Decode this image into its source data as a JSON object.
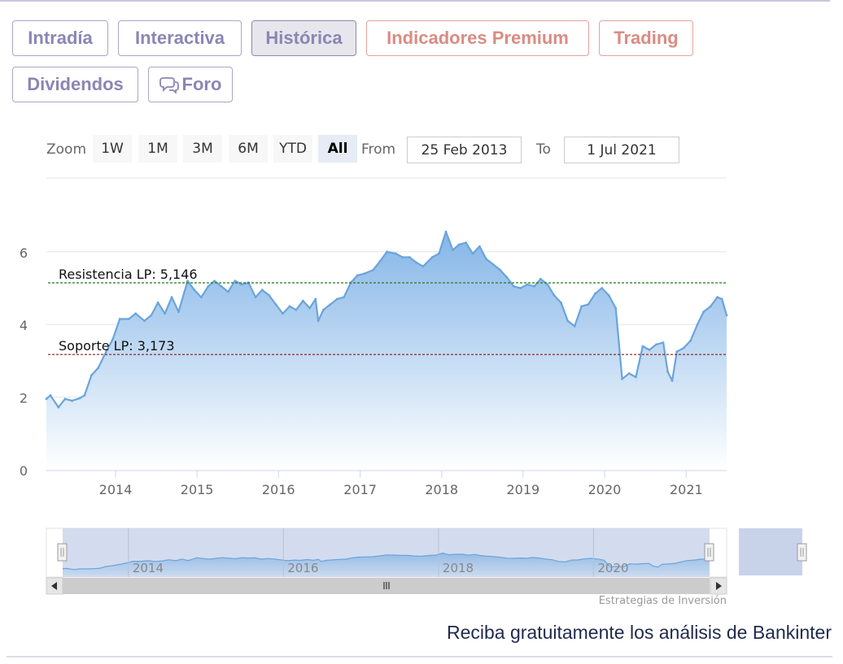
{
  "tabs": [
    {
      "label": "Intradía",
      "state": "normal"
    },
    {
      "label": "Interactiva",
      "state": "normal"
    },
    {
      "label": "Histórica",
      "state": "active"
    },
    {
      "label": "Indicadores Premium",
      "state": "premium"
    },
    {
      "label": "Trading",
      "state": "premium"
    },
    {
      "label": "Dividendos",
      "state": "normal"
    },
    {
      "label": "Foro",
      "state": "normal",
      "icon": "chat-bubbles-icon"
    }
  ],
  "range_selector": {
    "zoom_label": "Zoom",
    "buttons": [
      "1W",
      "1M",
      "3M",
      "6M",
      "YTD",
      "All"
    ],
    "selected": "All",
    "from_label": "From",
    "from_value": "25 Feb 2013",
    "to_label": "To",
    "to_value": "1 Jul 2021"
  },
  "chart_data": {
    "type": "area",
    "x_start": "2013-02-25",
    "x_end": "2021-07-01",
    "xticks": [
      "2014",
      "2015",
      "2016",
      "2017",
      "2018",
      "2019",
      "2020",
      "2021"
    ],
    "yticks": [
      0,
      2,
      4,
      6
    ],
    "ylim": [
      0,
      7
    ],
    "series": [
      {
        "points": [
          [
            "2013-02-25",
            1.95
          ],
          [
            "2013-03-15",
            2.05
          ],
          [
            "2013-04-20",
            1.72
          ],
          [
            "2013-05-20",
            1.95
          ],
          [
            "2013-06-20",
            1.9
          ],
          [
            "2013-07-25",
            1.97
          ],
          [
            "2013-08-15",
            2.05
          ],
          [
            "2013-09-15",
            2.6
          ],
          [
            "2013-10-15",
            2.8
          ],
          [
            "2013-11-20",
            3.25
          ],
          [
            "2013-12-20",
            3.6
          ],
          [
            "2014-01-20",
            4.15
          ],
          [
            "2014-03-01",
            4.15
          ],
          [
            "2014-04-01",
            4.3
          ],
          [
            "2014-05-10",
            4.1
          ],
          [
            "2014-06-10",
            4.25
          ],
          [
            "2014-07-10",
            4.6
          ],
          [
            "2014-08-10",
            4.3
          ],
          [
            "2014-09-10",
            4.75
          ],
          [
            "2014-10-10",
            4.35
          ],
          [
            "2014-11-20",
            5.2
          ],
          [
            "2014-12-20",
            4.95
          ],
          [
            "2015-01-20",
            4.75
          ],
          [
            "2015-02-20",
            5.05
          ],
          [
            "2015-03-20",
            5.2
          ],
          [
            "2015-04-20",
            5.05
          ],
          [
            "2015-05-20",
            4.9
          ],
          [
            "2015-06-20",
            5.2
          ],
          [
            "2015-07-20",
            5.1
          ],
          [
            "2015-08-20",
            5.15
          ],
          [
            "2015-09-20",
            4.75
          ],
          [
            "2015-10-20",
            4.95
          ],
          [
            "2015-11-20",
            4.8
          ],
          [
            "2015-12-20",
            4.55
          ],
          [
            "2016-01-20",
            4.3
          ],
          [
            "2016-02-20",
            4.5
          ],
          [
            "2016-03-20",
            4.4
          ],
          [
            "2016-04-20",
            4.65
          ],
          [
            "2016-05-20",
            4.45
          ],
          [
            "2016-06-15",
            4.7
          ],
          [
            "2016-06-27",
            4.1
          ],
          [
            "2016-07-20",
            4.4
          ],
          [
            "2016-08-20",
            4.55
          ],
          [
            "2016-09-20",
            4.7
          ],
          [
            "2016-10-20",
            4.75
          ],
          [
            "2016-11-20",
            5.15
          ],
          [
            "2016-12-20",
            5.35
          ],
          [
            "2017-01-20",
            5.4
          ],
          [
            "2017-03-01",
            5.5
          ],
          [
            "2017-04-01",
            5.75
          ],
          [
            "2017-05-01",
            6.0
          ],
          [
            "2017-06-10",
            5.95
          ],
          [
            "2017-07-10",
            5.85
          ],
          [
            "2017-08-10",
            5.85
          ],
          [
            "2017-09-10",
            5.7
          ],
          [
            "2017-10-10",
            5.6
          ],
          [
            "2017-11-20",
            5.85
          ],
          [
            "2017-12-20",
            5.95
          ],
          [
            "2018-01-20",
            6.55
          ],
          [
            "2018-02-20",
            6.05
          ],
          [
            "2018-03-20",
            6.2
          ],
          [
            "2018-04-20",
            6.25
          ],
          [
            "2018-05-20",
            5.95
          ],
          [
            "2018-06-20",
            6.15
          ],
          [
            "2018-07-20",
            5.8
          ],
          [
            "2018-08-20",
            5.65
          ],
          [
            "2018-09-20",
            5.5
          ],
          [
            "2018-10-20",
            5.3
          ],
          [
            "2018-11-20",
            5.05
          ],
          [
            "2018-12-20",
            5.0
          ],
          [
            "2019-01-20",
            5.1
          ],
          [
            "2019-02-20",
            5.05
          ],
          [
            "2019-03-20",
            5.25
          ],
          [
            "2019-04-20",
            5.1
          ],
          [
            "2019-05-20",
            4.8
          ],
          [
            "2019-06-20",
            4.6
          ],
          [
            "2019-07-20",
            4.1
          ],
          [
            "2019-08-20",
            3.95
          ],
          [
            "2019-09-20",
            4.5
          ],
          [
            "2019-10-20",
            4.55
          ],
          [
            "2019-11-20",
            4.85
          ],
          [
            "2019-12-20",
            5.0
          ],
          [
            "2020-01-20",
            4.8
          ],
          [
            "2020-02-20",
            4.45
          ],
          [
            "2020-03-20",
            2.5
          ],
          [
            "2020-04-20",
            2.65
          ],
          [
            "2020-05-20",
            2.55
          ],
          [
            "2020-06-20",
            3.4
          ],
          [
            "2020-07-20",
            3.3
          ],
          [
            "2020-08-20",
            3.45
          ],
          [
            "2020-09-20",
            3.5
          ],
          [
            "2020-10-10",
            2.7
          ],
          [
            "2020-10-30",
            2.45
          ],
          [
            "2020-11-20",
            3.25
          ],
          [
            "2020-12-20",
            3.35
          ],
          [
            "2021-01-20",
            3.55
          ],
          [
            "2021-02-20",
            4.0
          ],
          [
            "2021-03-20",
            4.35
          ],
          [
            "2021-04-20",
            4.5
          ],
          [
            "2021-05-20",
            4.75
          ],
          [
            "2021-06-10",
            4.7
          ],
          [
            "2021-07-01",
            4.25
          ]
        ]
      }
    ],
    "annotations": [
      {
        "label": "Resistencia LP: 5,146",
        "value": 5.146,
        "color": "#1e7a1e"
      },
      {
        "label": "Soporte LP: 3,173",
        "value": 3.173,
        "color": "#8b1a1a"
      }
    ],
    "navigator_ticks": [
      "2014",
      "2016",
      "2018",
      "2020"
    ],
    "credit": "Estrategias de Inversión"
  },
  "colors": {
    "line": "#6aa4dd",
    "fill_top": "#7fb2e6",
    "fill_bottom": "#ffffff",
    "grid": "#e6e6e6",
    "tab_text": "#8a86b4",
    "premium_text": "#d98c82"
  },
  "footer": {
    "promo_text": "Reciba gratuitamente los análisis de Bankinter"
  }
}
